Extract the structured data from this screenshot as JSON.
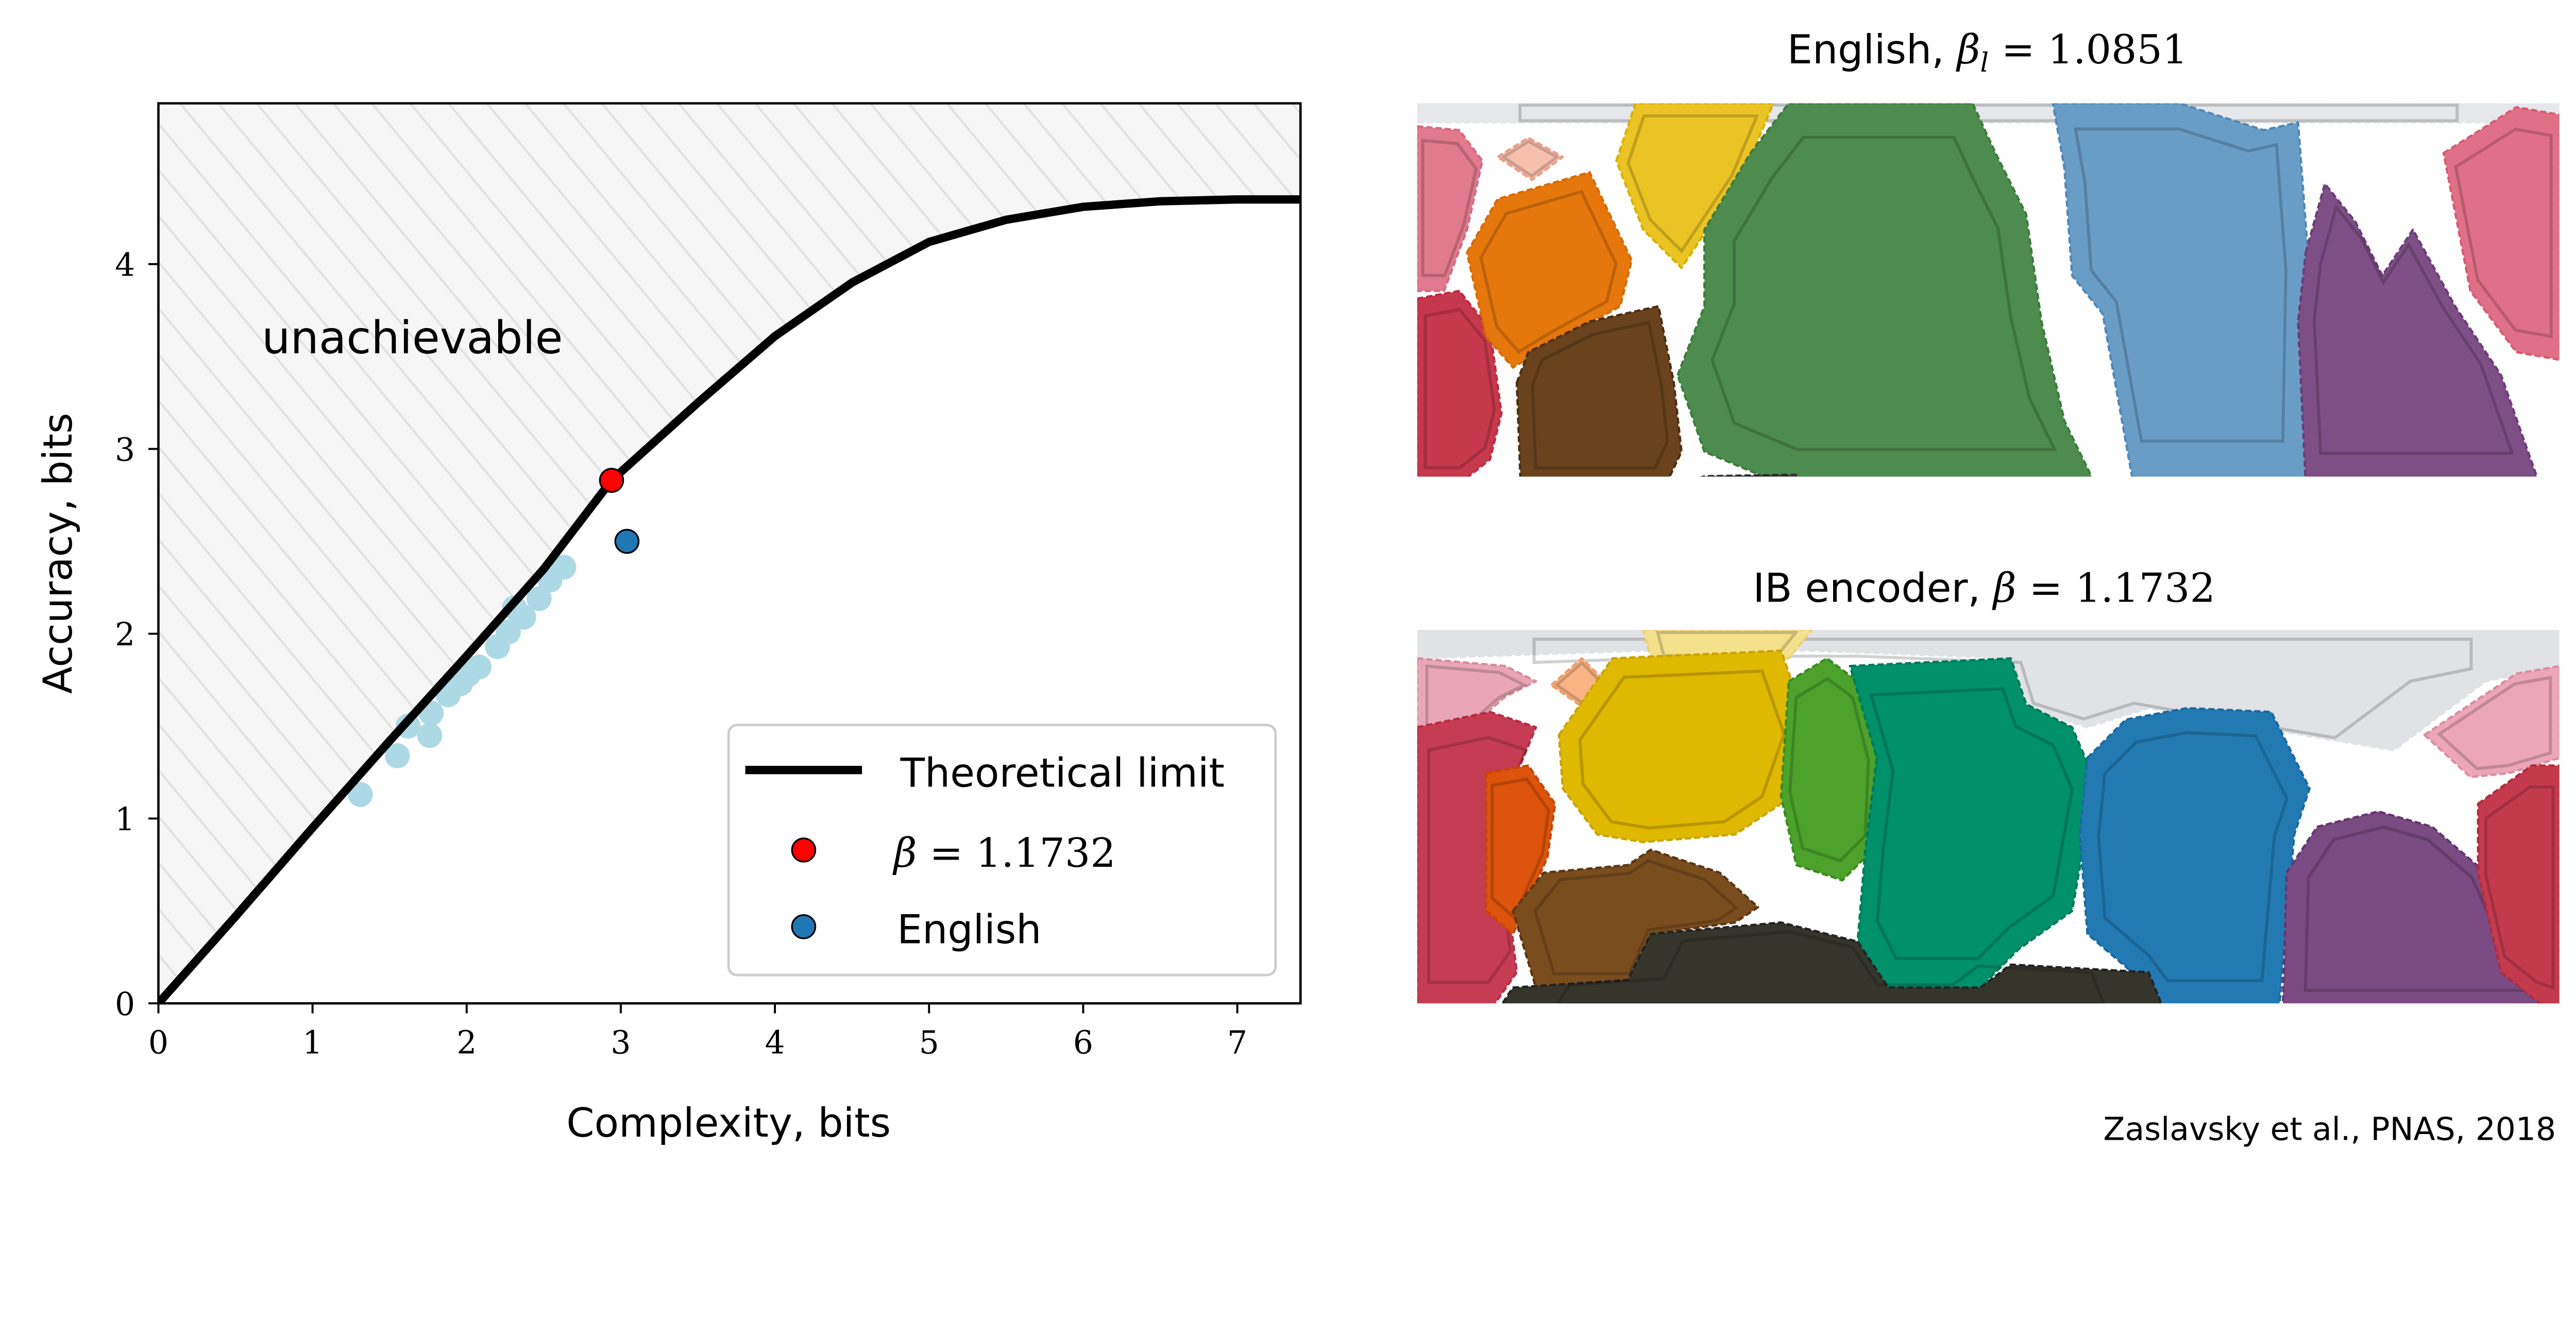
{
  "chart_data": [
    {
      "type": "line+scatter",
      "xlabel": "Complexity, bits",
      "ylabel": "Accuracy, bits",
      "xlim": [
        0,
        7.41
      ],
      "ylim": [
        0,
        4.87
      ],
      "xticks": [
        "0",
        "1",
        "2",
        "3",
        "4",
        "5",
        "6",
        "7"
      ],
      "yticks": [
        "0",
        "1",
        "2",
        "3",
        "4"
      ],
      "grid": false,
      "region_label": "unachievable",
      "legend_placement": "lower-right",
      "series": [
        {
          "name": "Theoretical limit",
          "type": "line",
          "color": "#000000",
          "points": [
            [
              0,
              0
            ],
            [
              0.5,
              0.47
            ],
            [
              1,
              0.95
            ],
            [
              1.5,
              1.42
            ],
            [
              2,
              1.88
            ],
            [
              2.5,
              2.35
            ],
            [
              2.94,
              2.83
            ],
            [
              3.5,
              3.25
            ],
            [
              4,
              3.61
            ],
            [
              4.5,
              3.9
            ],
            [
              5,
              4.12
            ],
            [
              5.5,
              4.24
            ],
            [
              6,
              4.31
            ],
            [
              6.5,
              4.34
            ],
            [
              7,
              4.35
            ],
            [
              7.41,
              4.35
            ]
          ]
        },
        {
          "name": "β = 1.1732",
          "legend_symbol": "β",
          "legend_value": "= 1.1732",
          "type": "scatter",
          "color": "#ff0000",
          "points": [
            [
              2.94,
              2.83
            ]
          ]
        },
        {
          "name": "English",
          "type": "scatter",
          "color": "#1f77b4",
          "points": [
            [
              3.04,
              2.5
            ]
          ]
        },
        {
          "type": "scatter",
          "color": "#add8e6",
          "points": [
            [
              1.31,
              1.13
            ],
            [
              1.55,
              1.34
            ],
            [
              1.62,
              1.5
            ],
            [
              1.76,
              1.45
            ],
            [
              1.77,
              1.57
            ],
            [
              1.88,
              1.67
            ],
            [
              1.96,
              1.73
            ],
            [
              2.01,
              1.78
            ],
            [
              2.08,
              1.82
            ],
            [
              2.2,
              1.93
            ],
            [
              2.27,
              2.01
            ],
            [
              2.31,
              2.14
            ],
            [
              2.37,
              2.09
            ],
            [
              2.47,
              2.19
            ],
            [
              2.54,
              2.29
            ],
            [
              2.63,
              2.36
            ]
          ]
        }
      ]
    },
    {
      "type": "contour-map",
      "title": {
        "label": "English,",
        "symbol": "β",
        "subscript": "l",
        "value": "= 1.0851"
      }
    },
    {
      "type": "contour-map",
      "title": {
        "label": "IB encoder,",
        "symbol": "β",
        "subscript": "",
        "value": "= 1.1732"
      }
    }
  ],
  "citation": "Zaslavsky et al., PNAS, 2018",
  "colors": {
    "hatch_bg": "#f6f6f6",
    "hatch_line": "#e2e2e2"
  }
}
